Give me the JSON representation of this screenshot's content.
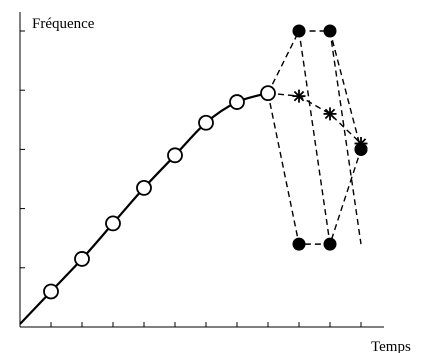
{
  "chart_data": {
    "type": "line",
    "ylabel": "Fréquence",
    "xlabel": "Temps",
    "xlim": [
      0,
      11
    ],
    "ylim": [
      0,
      10.5
    ],
    "grid": false,
    "series": [
      {
        "style": "solid-curve-open-circles",
        "x": [
          1,
          2,
          3,
          4,
          5,
          6,
          7,
          8
        ],
        "y": [
          1.2,
          2.3,
          3.5,
          4.7,
          5.8,
          6.9,
          7.6,
          7.9
        ]
      },
      {
        "style": "dashed-asterisks",
        "x": [
          8,
          9,
          10,
          11
        ],
        "y": [
          7.9,
          7.8,
          7.2,
          6.2
        ]
      },
      {
        "style": "dashed-filled-dots-upper",
        "x": [
          8,
          9,
          10,
          11
        ],
        "y": [
          7.9,
          10.0,
          10.0,
          6.0
        ]
      },
      {
        "style": "dashed-filled-dots-lower",
        "x": [
          8,
          9,
          10,
          11
        ],
        "y": [
          7.9,
          2.8,
          2.8,
          6.0
        ]
      },
      {
        "style": "dashed-connector",
        "x": [
          9,
          10
        ],
        "y": [
          10.0,
          2.8
        ]
      },
      {
        "style": "dashed-connector",
        "x": [
          10,
          11
        ],
        "y": [
          10.0,
          2.8
        ]
      }
    ],
    "colors": {
      "ink": "#000000"
    }
  }
}
